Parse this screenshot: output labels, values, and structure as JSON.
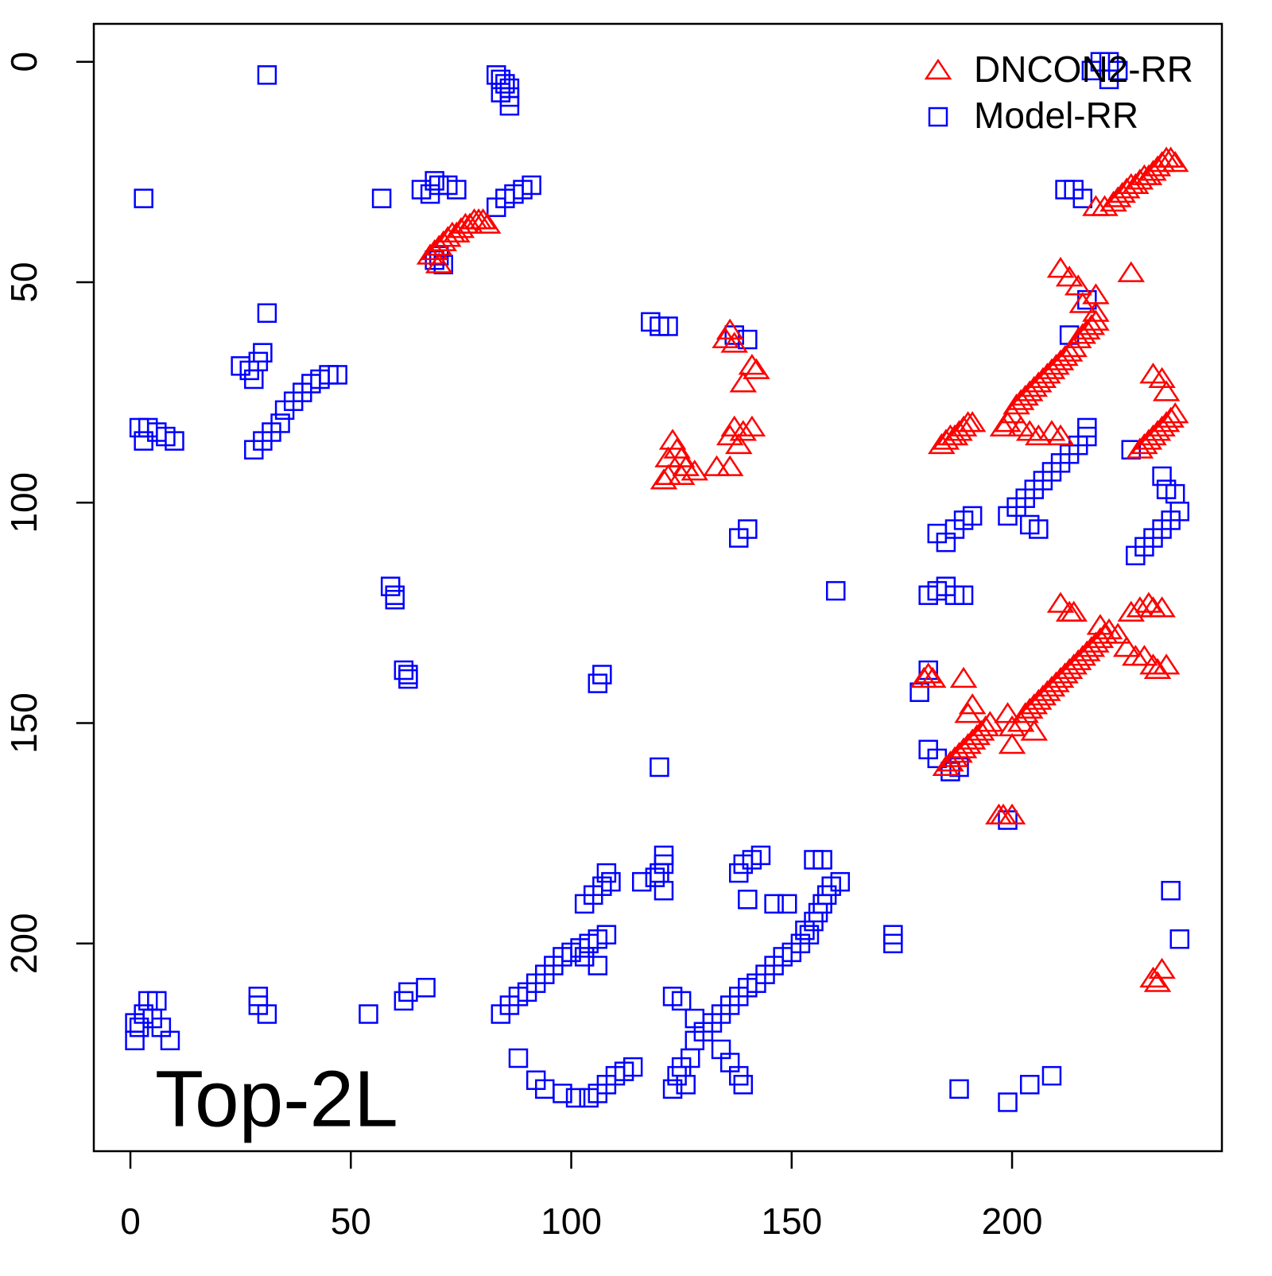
{
  "chart_data": {
    "type": "scatter",
    "annotation": "Top-2L",
    "xlim": [
      -8.3,
      247.6
    ],
    "ylim": [
      -8.6,
      247.1
    ],
    "y_reversed": true,
    "xticks": [
      0,
      50,
      100,
      150,
      200
    ],
    "yticks": [
      0,
      50,
      100,
      150,
      200
    ],
    "grid": false,
    "legend": "topright",
    "series": [
      {
        "name": "DNCON2-RR",
        "color": "#ff0000",
        "marker": "triangle",
        "x": [
          68,
          69,
          70,
          71,
          72,
          73,
          74,
          75,
          76,
          77,
          78,
          79,
          80,
          81,
          70,
          219,
          221,
          223,
          224,
          225,
          226,
          227,
          228,
          229,
          230,
          231,
          232,
          233,
          234,
          235,
          236,
          237,
          211,
          213,
          215,
          219,
          227,
          199,
          200,
          201,
          202,
          203,
          204,
          205,
          206,
          207,
          208,
          209,
          210,
          211,
          212,
          213,
          214,
          215,
          216,
          217,
          218,
          219,
          219,
          216,
          198,
          202,
          204,
          206,
          209,
          211,
          184,
          185,
          186,
          187,
          188,
          189,
          190,
          191,
          229,
          230,
          231,
          232,
          233,
          234,
          235,
          236,
          237,
          232,
          234,
          235,
          136,
          135,
          137,
          141,
          142,
          139,
          123,
          124,
          122,
          125,
          126,
          128,
          122,
          121,
          125,
          133,
          136,
          136,
          137,
          139,
          141,
          138,
          211,
          213,
          214,
          220,
          222,
          224,
          227,
          229,
          231,
          232,
          234,
          226,
          228,
          230,
          232,
          233,
          235,
          180,
          181,
          182,
          189,
          185,
          186,
          187,
          188,
          189,
          190,
          191,
          192,
          193,
          194,
          195,
          190,
          191,
          200,
          202,
          203,
          204,
          205,
          206,
          207,
          208,
          209,
          210,
          211,
          212,
          213,
          214,
          215,
          216,
          217,
          218,
          219,
          220,
          221,
          205,
          199,
          200,
          197,
          198,
          200,
          232,
          234,
          233
        ],
        "values": [
          44,
          43,
          42,
          41,
          40,
          39,
          39,
          38,
          37,
          37,
          36,
          36,
          36,
          37,
          46,
          33,
          33,
          32,
          31,
          30,
          29,
          28,
          28,
          27,
          26,
          26,
          25,
          24,
          23,
          22,
          22,
          23,
          47,
          49,
          51,
          53,
          48,
          82,
          80,
          78,
          77,
          76,
          75,
          74,
          73,
          72,
          71,
          70,
          69,
          68,
          67,
          66,
          65,
          63,
          62,
          61,
          60,
          59,
          57,
          55,
          83,
          83,
          84,
          85,
          84,
          85,
          87,
          86,
          85,
          85,
          84,
          83,
          82,
          82,
          88,
          87,
          86,
          85,
          84,
          83,
          82,
          81,
          80,
          71,
          72,
          75,
          61,
          63,
          64,
          69,
          70,
          73,
          86,
          88,
          90,
          90,
          92,
          93,
          94,
          95,
          94,
          92,
          92,
          85,
          83,
          84,
          83,
          87,
          123,
          125,
          125,
          128,
          129,
          130,
          125,
          124,
          123,
          124,
          124,
          133,
          135,
          135,
          137,
          138,
          137,
          140,
          139,
          140,
          140,
          160,
          159,
          158,
          157,
          156,
          155,
          154,
          153,
          152,
          151,
          150,
          148,
          146,
          151,
          150,
          148,
          147,
          146,
          145,
          144,
          143,
          142,
          141,
          140,
          139,
          138,
          137,
          136,
          135,
          134,
          133,
          132,
          131,
          130,
          152,
          148,
          155,
          171,
          171,
          171,
          208,
          206,
          209
        ]
      },
      {
        "name": "Model-RR",
        "color": "#0000ff",
        "marker": "square",
        "x": [
          31,
          3,
          57,
          83,
          84,
          85,
          86,
          84,
          86,
          86,
          69,
          70,
          72,
          66,
          74,
          68,
          83,
          85,
          87,
          89,
          91,
          69,
          71,
          70,
          31,
          25,
          27,
          29,
          30,
          28,
          28,
          30,
          32,
          34,
          35,
          37,
          39,
          41,
          43,
          45,
          47,
          2,
          4,
          6,
          8,
          10,
          3,
          118,
          120,
          122,
          137,
          140,
          59,
          60,
          60,
          62,
          63,
          63,
          107,
          106,
          160,
          120,
          138,
          140,
          218,
          220,
          222,
          224,
          222,
          212,
          214,
          216,
          217,
          213,
          199,
          201,
          203,
          205,
          207,
          209,
          211,
          213,
          215,
          217,
          217,
          204,
          206,
          227,
          228,
          230,
          232,
          234,
          236,
          238,
          235,
          234,
          237,
          183,
          185,
          187,
          189,
          191,
          181,
          183,
          185,
          187,
          189,
          181,
          179,
          181,
          183,
          186,
          188,
          199,
          236,
          238,
          173,
          173,
          1,
          2,
          3,
          5,
          7,
          9,
          1,
          4,
          6,
          29,
          29,
          31,
          54,
          62,
          63,
          67,
          84,
          86,
          88,
          90,
          92,
          94,
          96,
          98,
          100,
          102,
          104,
          106,
          108,
          106,
          103,
          103,
          105,
          107,
          109,
          108,
          116,
          119,
          120,
          121,
          121,
          121,
          88,
          92,
          94,
          98,
          101,
          104,
          106,
          108,
          110,
          112,
          114,
          124,
          125,
          127,
          126,
          123,
          123,
          125,
          128,
          128,
          130,
          132,
          134,
          136,
          138,
          140,
          142,
          144,
          146,
          148,
          150,
          152,
          154,
          155,
          156,
          157,
          158,
          159,
          161,
          157,
          155,
          153,
          138,
          139,
          141,
          143,
          140,
          146,
          149,
          134,
          136,
          138,
          139,
          188,
          199,
          204,
          209
        ],
        "values": [
          3,
          31,
          31,
          3,
          4,
          5,
          6,
          7,
          8,
          10,
          27,
          28,
          28,
          29,
          29,
          30,
          33,
          31,
          30,
          29,
          28,
          45,
          46,
          44,
          57,
          69,
          70,
          68,
          66,
          72,
          88,
          86,
          84,
          82,
          79,
          77,
          75,
          73,
          72,
          71,
          71,
          83,
          83,
          84,
          85,
          86,
          86,
          59,
          60,
          60,
          62,
          63,
          119,
          121,
          122,
          138,
          139,
          140,
          139,
          141,
          120,
          160,
          108,
          106,
          2,
          0,
          0,
          2,
          4,
          29,
          29,
          31,
          54,
          62,
          103,
          101,
          99,
          97,
          95,
          93,
          91,
          89,
          87,
          85,
          83,
          105,
          106,
          88,
          112,
          110,
          108,
          106,
          104,
          102,
          97,
          94,
          98,
          107,
          109,
          106,
          104,
          103,
          121,
          120,
          119,
          121,
          121,
          138,
          143,
          156,
          158,
          161,
          160,
          172,
          188,
          199,
          198,
          200,
          218,
          219,
          216,
          217,
          219,
          222,
          222,
          213,
          213,
          212,
          214,
          216,
          216,
          213,
          211,
          210,
          216,
          214,
          212,
          211,
          209,
          207,
          205,
          203,
          202,
          201,
          200,
          199,
          198,
          205,
          203,
          191,
          189,
          187,
          186,
          184,
          186,
          185,
          184,
          182,
          180,
          188,
          226,
          231,
          233,
          234,
          235,
          235,
          234,
          232,
          230,
          229,
          228,
          230,
          228,
          226,
          232,
          233,
          212,
          213,
          217,
          222,
          220,
          218,
          216,
          214,
          212,
          210,
          209,
          207,
          205,
          203,
          202,
          200,
          198,
          195,
          193,
          191,
          189,
          187,
          186,
          181,
          181,
          197,
          184,
          182,
          181,
          180,
          190,
          191,
          191,
          224,
          227,
          230,
          232,
          233,
          236,
          232,
          230
        ]
      }
    ]
  }
}
